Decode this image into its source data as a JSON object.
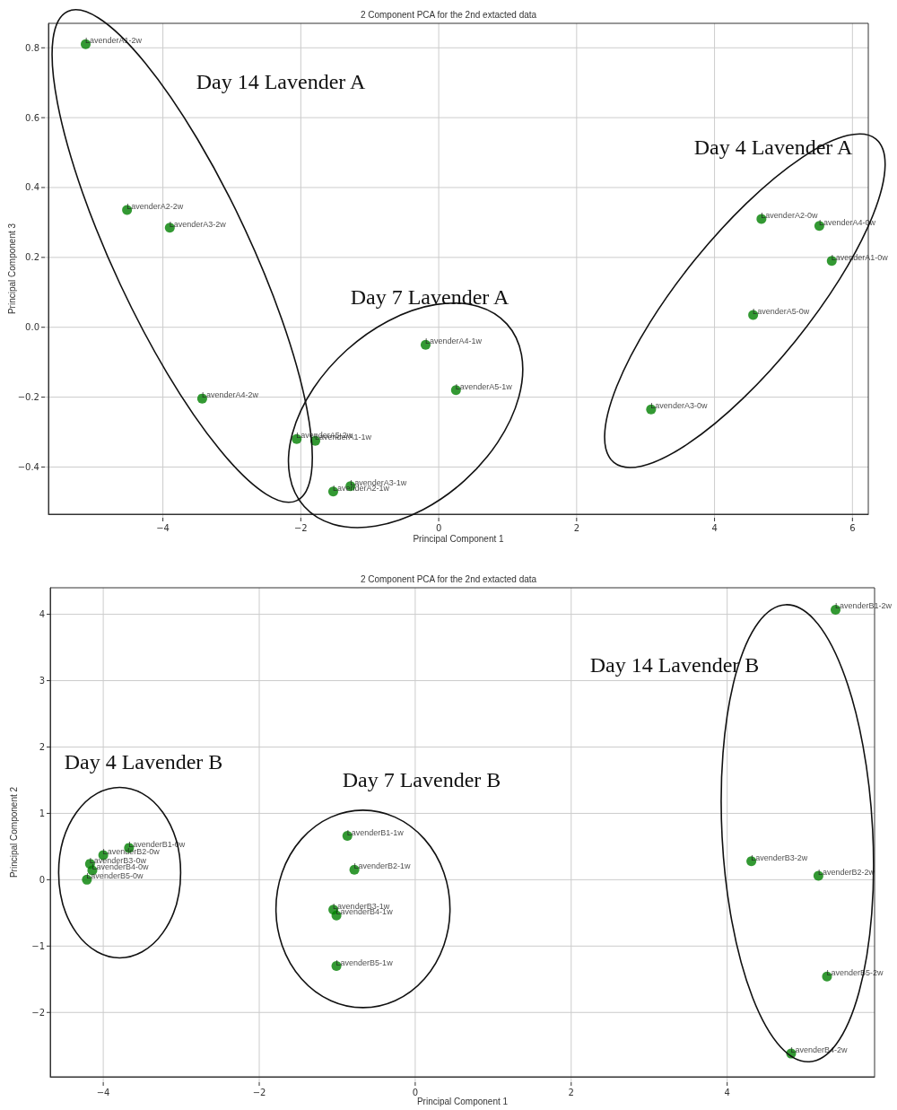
{
  "chart_data": [
    {
      "type": "scatter",
      "title": "2 Component PCA for the 2nd extacted data",
      "xlabel": "Principal Component 1",
      "ylabel": "Principal Component 3",
      "x": [
        -5.12,
        -4.52,
        -3.9,
        -3.43,
        -2.06,
        -1.79,
        -1.53,
        -1.28,
        -0.19,
        0.25,
        3.08,
        4.56,
        4.68,
        5.52,
        5.7
      ],
      "values": [
        0.81,
        0.336,
        0.285,
        -0.204,
        -0.32,
        -0.325,
        -0.47,
        -0.455,
        -0.05,
        -0.18,
        -0.235,
        0.035,
        0.31,
        0.29,
        0.19
      ],
      "value_labels": [
        "LavenderA1-2w",
        "LavenderA2-2w",
        "LavenderA3-2w",
        "LavenderA4-2w",
        "LavenderA5-2w",
        "LavenderA1-1w",
        "LavenderA2-1w",
        "LavenderA3-1w",
        "LavenderA4-1w",
        "LavenderA5-1w",
        "LavenderA3-0w",
        "LavenderA5-0w",
        "LavenderA2-0w",
        "LavenderA4-0w",
        "LavenderA1-0w"
      ],
      "color": "#008000",
      "marker": "circle",
      "grid": true,
      "xlim": [
        -5.66,
        6.23
      ],
      "ylim": [
        -0.535,
        0.87
      ],
      "xticks": [
        -4,
        -2,
        0,
        2,
        4,
        6
      ],
      "yticks": [
        -0.4,
        -0.2,
        {
          "value": 0,
          "label": "0.0"
        },
        0.2,
        0.4,
        0.6,
        0.8
      ],
      "annotations": [
        "Day 14 Lavender A",
        "Day 7 Lavender A",
        "Day 4 Lavender A"
      ]
    },
    {
      "type": "scatter",
      "title": "2 Component PCA for the 2nd extacted data",
      "xlabel": "Principal Component 1",
      "ylabel": "Principal Component 2",
      "x": [
        -3.67,
        -4.0,
        -4.17,
        -4.14,
        -4.21,
        -0.87,
        -0.78,
        -1.05,
        -1.01,
        -1.01,
        5.39,
        4.31,
        5.17,
        5.28,
        4.82
      ],
      "values": [
        0.48,
        0.37,
        0.24,
        0.14,
        0.0,
        0.66,
        0.15,
        -0.45,
        -0.54,
        -1.3,
        4.07,
        0.28,
        0.06,
        -1.46,
        -2.62
      ],
      "value_labels": [
        "LavenderB1-0w",
        "LavenderB2-0w",
        "LavenderB3-0w",
        "LavenderB4-0w",
        "LavenderB5-0w",
        "LavenderB1-1w",
        "LavenderB2-1w",
        "LavenderB3-1w",
        "LavenderB4-1w",
        "LavenderB5-1w",
        "LavenderB1-2w",
        "LavenderB3-2w",
        "LavenderB2-2w",
        "LavenderB5-2w",
        "LavenderB4-2w"
      ],
      "color": "#008000",
      "marker": "circle",
      "grid": true,
      "xlim": [
        -4.68,
        5.89
      ],
      "ylim": [
        -2.97,
        4.4
      ],
      "xticks": [
        -4,
        -2,
        0,
        2,
        4
      ],
      "yticks": [
        -2,
        -1,
        0,
        1,
        2,
        3,
        4
      ],
      "annotations": [
        "Day 14 Lavender B",
        "Day 4 Lavender B",
        "Day 7 Lavender B"
      ]
    }
  ]
}
